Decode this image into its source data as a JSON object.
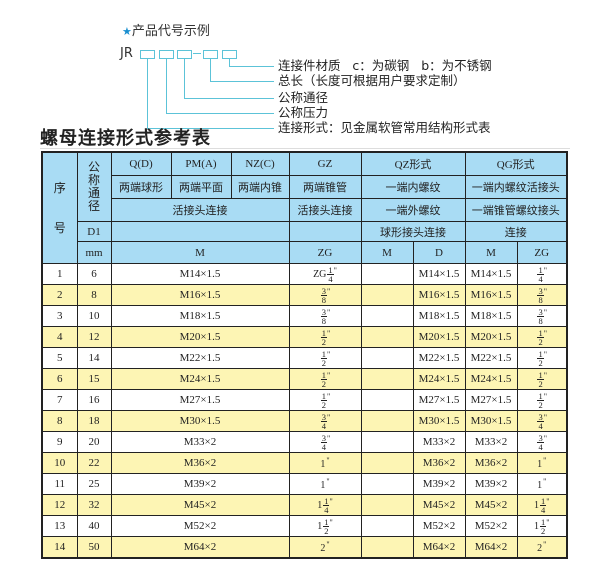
{
  "example": {
    "star_icon": "star-icon",
    "title": "产品代号示例",
    "prefix": "JR",
    "labels": [
      "连接件材质   c：为碳钢   b：为不锈钢",
      "总长（长度可根据用户要求定制）",
      "公称通径",
      "公称压力",
      "连接形式：见金属软管常用结构形式表"
    ]
  },
  "table_title": "螺母连接形式参考表",
  "colors": {
    "header_bg": "#a9dcf4",
    "alt_row_bg": "#fdf5b4",
    "accent": "#5cc3d8"
  },
  "header": {
    "seq_top": "序",
    "seq_bottom": "号",
    "nominal": "公称通径",
    "types": [
      "Q(D)",
      "PM(A)",
      "NZ(C)",
      "GZ",
      "QZ形式",
      "QG形式"
    ],
    "row2": [
      "两端球形",
      "两端平面",
      "两端内锥",
      "两端锥管",
      "一端内螺纹",
      "一端内螺纹活接头"
    ],
    "row3": [
      "活接头连接",
      "活接头连接",
      "一端外螺纹",
      "一端锥管螺纹接头"
    ],
    "d1": "D1",
    "row4": [
      "球形接头连接",
      "连接"
    ],
    "unit": "mm",
    "row5": [
      "M",
      "ZG",
      "M",
      "D",
      "M",
      "ZG"
    ]
  },
  "rows": [
    {
      "no": "1",
      "d1": "6",
      "m": "M14×1.5",
      "zg": {
        "w": "ZG",
        "n": "1",
        "d": "4"
      },
      "qz_m": "",
      "qz_d": "M14×1.5",
      "qg_m": "M14×1.5",
      "qg_zg": {
        "w": "",
        "n": "1",
        "d": "4"
      }
    },
    {
      "no": "2",
      "d1": "8",
      "m": "M16×1.5",
      "zg": {
        "w": "",
        "n": "3",
        "d": "8"
      },
      "qz_m": "",
      "qz_d": "M16×1.5",
      "qg_m": "M16×1.5",
      "qg_zg": {
        "w": "",
        "n": "3",
        "d": "8"
      }
    },
    {
      "no": "3",
      "d1": "10",
      "m": "M18×1.5",
      "zg": {
        "w": "",
        "n": "3",
        "d": "8"
      },
      "qz_m": "",
      "qz_d": "M18×1.5",
      "qg_m": "M18×1.5",
      "qg_zg": {
        "w": "",
        "n": "3",
        "d": "8"
      }
    },
    {
      "no": "4",
      "d1": "12",
      "m": "M20×1.5",
      "zg": {
        "w": "",
        "n": "1",
        "d": "2"
      },
      "qz_m": "",
      "qz_d": "M20×1.5",
      "qg_m": "M20×1.5",
      "qg_zg": {
        "w": "",
        "n": "1",
        "d": "2"
      }
    },
    {
      "no": "5",
      "d1": "14",
      "m": "M22×1.5",
      "zg": {
        "w": "",
        "n": "1",
        "d": "2"
      },
      "qz_m": "",
      "qz_d": "M22×1.5",
      "qg_m": "M22×1.5",
      "qg_zg": {
        "w": "",
        "n": "1",
        "d": "2"
      }
    },
    {
      "no": "6",
      "d1": "15",
      "m": "M24×1.5",
      "zg": {
        "w": "",
        "n": "1",
        "d": "2"
      },
      "qz_m": "",
      "qz_d": "M24×1.5",
      "qg_m": "M24×1.5",
      "qg_zg": {
        "w": "",
        "n": "1",
        "d": "2"
      }
    },
    {
      "no": "7",
      "d1": "16",
      "m": "M27×1.5",
      "zg": {
        "w": "",
        "n": "1",
        "d": "2"
      },
      "qz_m": "",
      "qz_d": "M27×1.5",
      "qg_m": "M27×1.5",
      "qg_zg": {
        "w": "",
        "n": "1",
        "d": "2"
      }
    },
    {
      "no": "8",
      "d1": "18",
      "m": "M30×1.5",
      "zg": {
        "w": "",
        "n": "3",
        "d": "4"
      },
      "qz_m": "",
      "qz_d": "M30×1.5",
      "qg_m": "M30×1.5",
      "qg_zg": {
        "w": "",
        "n": "3",
        "d": "4"
      }
    },
    {
      "no": "9",
      "d1": "20",
      "m": "M33×2",
      "zg": {
        "w": "",
        "n": "3",
        "d": "4"
      },
      "qz_m": "",
      "qz_d": "M33×2",
      "qg_m": "M33×2",
      "qg_zg": {
        "w": "",
        "n": "3",
        "d": "4"
      }
    },
    {
      "no": "10",
      "d1": "22",
      "m": "M36×2",
      "zg": {
        "w": "1",
        "n": "",
        "d": ""
      },
      "qz_m": "",
      "qz_d": "M36×2",
      "qg_m": "M36×2",
      "qg_zg": {
        "w": "1",
        "n": "",
        "d": ""
      }
    },
    {
      "no": "11",
      "d1": "25",
      "m": "M39×2",
      "zg": {
        "w": "1",
        "n": "",
        "d": ""
      },
      "qz_m": "",
      "qz_d": "M39×2",
      "qg_m": "M39×2",
      "qg_zg": {
        "w": "1",
        "n": "",
        "d": ""
      }
    },
    {
      "no": "12",
      "d1": "32",
      "m": "M45×2",
      "zg": {
        "w": "1",
        "n": "1",
        "d": "4"
      },
      "qz_m": "",
      "qz_d": "M45×2",
      "qg_m": "M45×2",
      "qg_zg": {
        "w": "1",
        "n": "1",
        "d": "4"
      }
    },
    {
      "no": "13",
      "d1": "40",
      "m": "M52×2",
      "zg": {
        "w": "1",
        "n": "1",
        "d": "2"
      },
      "qz_m": "",
      "qz_d": "M52×2",
      "qg_m": "M52×2",
      "qg_zg": {
        "w": "1",
        "n": "1",
        "d": "2"
      }
    },
    {
      "no": "14",
      "d1": "50",
      "m": "M64×2",
      "zg": {
        "w": "2",
        "n": "",
        "d": ""
      },
      "qz_m": "",
      "qz_d": "M64×2",
      "qg_m": "M64×2",
      "qg_zg": {
        "w": "2",
        "n": "",
        "d": ""
      }
    }
  ]
}
